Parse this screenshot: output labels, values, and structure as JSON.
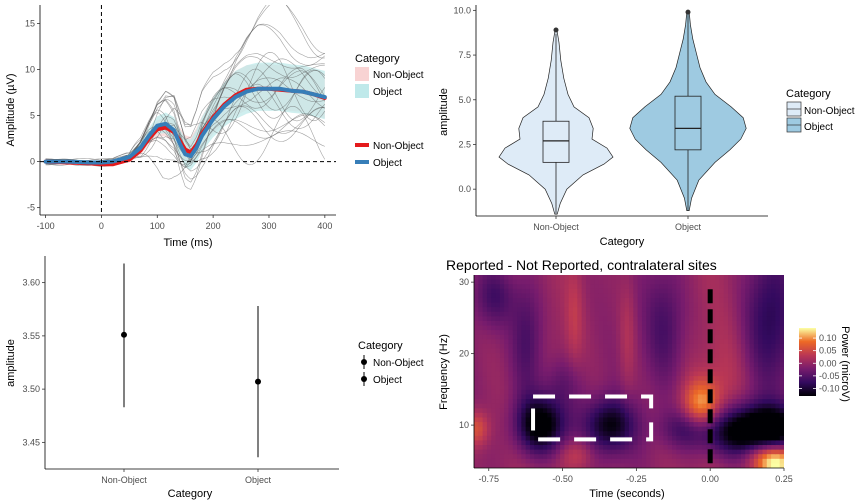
{
  "chart_data": [
    {
      "type": "line",
      "xlabel": "Time (ms)",
      "ylabel": "Amplitude (µV)",
      "xlim": [
        -110,
        420
      ],
      "ylim": [
        -5.8,
        17
      ],
      "xticks": [
        "-100",
        "0",
        "100",
        "200",
        "300",
        "400"
      ],
      "yticks": [
        "-5",
        "0",
        "5",
        "10",
        "15"
      ],
      "legend_title": "Category",
      "legend_ribbon_labels": [
        "Non-Object",
        "Object"
      ],
      "legend_line_labels": [
        "Non-Object",
        "Object"
      ],
      "series": [
        {
          "name": "Non-Object",
          "color": "#e41a1c",
          "x": [
            -100,
            -60,
            -20,
            0,
            20,
            50,
            70,
            85,
            100,
            115,
            130,
            140,
            150,
            160,
            170,
            180,
            200,
            220,
            240,
            260,
            280,
            300,
            320,
            340,
            360,
            380,
            400
          ],
          "y": [
            0,
            -0.1,
            -0.2,
            -0.3,
            -0.3,
            0.2,
            1.2,
            2.5,
            3.5,
            3.7,
            3.2,
            2.3,
            1.3,
            1.0,
            1.8,
            3.0,
            4.8,
            6.2,
            7.2,
            7.8,
            7.9,
            7.9,
            7.8,
            7.7,
            7.6,
            7.3,
            6.9
          ]
        },
        {
          "name": "Object",
          "color": "#377eb8",
          "x": [
            -100,
            -60,
            -20,
            0,
            20,
            50,
            70,
            85,
            100,
            115,
            130,
            140,
            150,
            160,
            170,
            180,
            200,
            220,
            240,
            260,
            280,
            300,
            320,
            340,
            360,
            380,
            400
          ],
          "y": [
            0,
            0,
            -0.1,
            -0.1,
            0,
            0.5,
            1.5,
            2.8,
            3.9,
            4.1,
            3.4,
            2.0,
            0.8,
            0.6,
            1.5,
            2.8,
            4.6,
            6.0,
            7.0,
            7.6,
            7.9,
            7.9,
            7.9,
            7.7,
            7.6,
            7.3,
            7.0
          ]
        }
      ],
      "ribbons": [
        {
          "name": "Non-Object",
          "color": "#f8d3d3",
          "upper_offset": [
            1.2,
            2.4
          ],
          "lower_offset": [
            1.0,
            2.0
          ]
        },
        {
          "name": "Object",
          "color": "#bfe9ea",
          "upper_offset": [
            1.3,
            2.6
          ],
          "lower_offset": [
            1.0,
            2.2
          ]
        }
      ],
      "reference_lines": {
        "vertical_x": 0,
        "horizontal_y": 0
      }
    },
    {
      "type": "violin",
      "xlabel": "Category",
      "ylabel": "amplitude",
      "categories": [
        "Non-Object",
        "Object"
      ],
      "ylim": [
        -1.5,
        10.3
      ],
      "yticks": [
        "0.0",
        "2.5",
        "5.0",
        "7.5",
        "10.0"
      ],
      "legend_title": "Category",
      "legend_labels": [
        "Non-Object",
        "Object"
      ],
      "colors": [
        "#deebf7",
        "#9ecae1"
      ],
      "box": [
        {
          "q1": 1.5,
          "median": 2.7,
          "q3": 3.8,
          "whisker_low": -1.4,
          "whisker_high": 8.7,
          "outlier": 8.9
        },
        {
          "q1": 2.2,
          "median": 3.4,
          "q3": 5.2,
          "whisker_low": -1.2,
          "whisker_high": 9.8,
          "outlier": 9.9
        }
      ]
    },
    {
      "type": "errorbar",
      "xlabel": "Category",
      "ylabel": "amplitude",
      "categories": [
        "Non-Object",
        "Object"
      ],
      "ylim": [
        3.425,
        3.625
      ],
      "yticks": [
        "3.45",
        "3.50",
        "3.55",
        "3.60"
      ],
      "means": [
        3.551,
        3.507
      ],
      "lower": [
        3.483,
        3.436
      ],
      "upper": [
        3.618,
        3.578
      ],
      "legend_title": "Category",
      "legend_labels": [
        "Non-Object",
        "Object"
      ]
    },
    {
      "type": "heatmap",
      "title": "Reported - Not Reported, contralateral sites",
      "xlabel": "Time (seconds)",
      "ylabel": "Frequency (Hz)",
      "xlim": [
        -0.8,
        0.25
      ],
      "ylim": [
        4,
        31
      ],
      "xticks": [
        "-0.75",
        "-0.50",
        "-0.25",
        "0.00",
        "0.25"
      ],
      "yticks": [
        "10",
        "20",
        "30"
      ],
      "colorbar_title": "Power (microV)",
      "colorbar_ticks": [
        "0.10",
        "0.05",
        "0.00",
        "-0.05",
        "-0.10"
      ],
      "colorbar_range": [
        -0.13,
        0.14
      ],
      "vertical_line_x": 0.0,
      "roi_box": {
        "x": [
          -0.6,
          -0.2
        ],
        "y": [
          8,
          14
        ]
      }
    }
  ]
}
